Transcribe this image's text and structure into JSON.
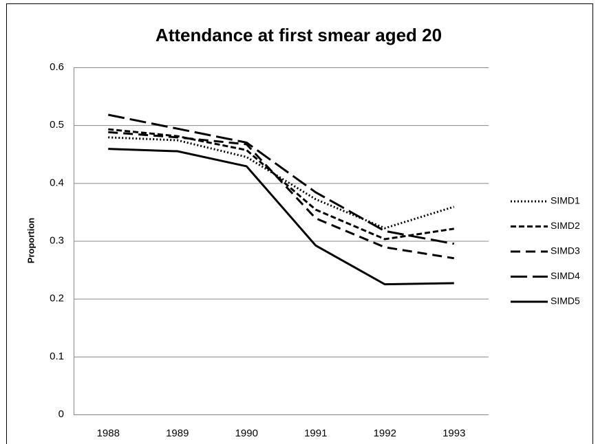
{
  "chart_data": {
    "type": "line",
    "title": "Attendance at first smear aged 20",
    "y_label": "Proportion",
    "categories": [
      "1988",
      "1989",
      "1990",
      "1991",
      "1992",
      "1993"
    ],
    "series": [
      {
        "name": "SIMD1",
        "color": "#000000",
        "dash": "2,3",
        "values": [
          0.479,
          0.474,
          0.445,
          0.372,
          0.322,
          0.359
        ]
      },
      {
        "name": "SIMD2",
        "color": "#000000",
        "dash": "8,4",
        "values": [
          0.493,
          0.481,
          0.457,
          0.354,
          0.303,
          0.321
        ]
      },
      {
        "name": "SIMD3",
        "color": "#000000",
        "dash": "14,8",
        "values": [
          0.488,
          0.479,
          0.467,
          0.339,
          0.289,
          0.27
        ]
      },
      {
        "name": "SIMD4",
        "color": "#000000",
        "dash": "24,8",
        "values": [
          0.518,
          0.494,
          0.47,
          0.384,
          0.317,
          0.295
        ]
      },
      {
        "name": "SIMD5",
        "color": "#000000",
        "dash": "none",
        "values": [
          0.459,
          0.455,
          0.429,
          0.292,
          0.225,
          0.227
        ]
      }
    ],
    "ylim": [
      0,
      0.6
    ],
    "yticks": [
      0,
      0.1,
      0.2,
      0.3,
      0.4,
      0.5,
      0.6
    ],
    "grid": true,
    "legend": "right"
  }
}
